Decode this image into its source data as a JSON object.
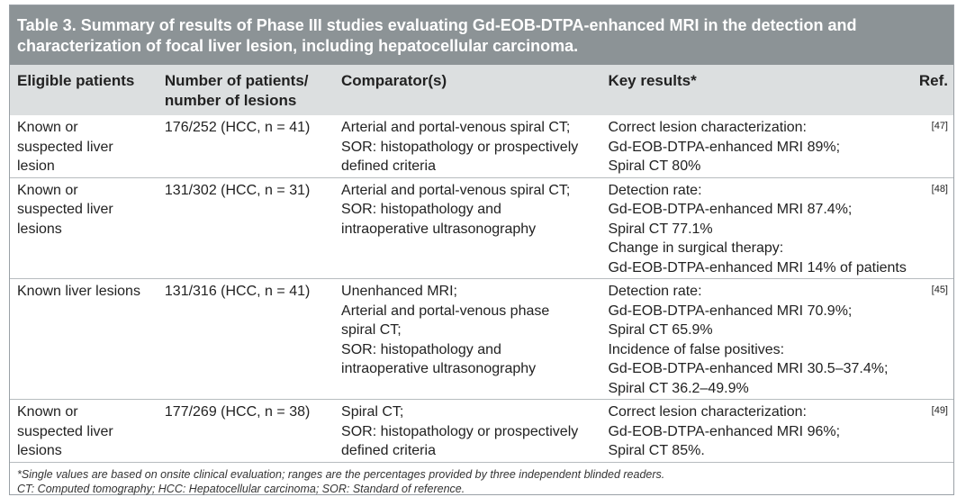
{
  "title": {
    "line1": "Table 3. Summary of results of Phase III studies evaluating Gd-EOB-DTPA-enhanced MRI in the detection and",
    "line2": "characterization of focal liver lesion, including hepatocellular carcinoma."
  },
  "headers": {
    "eligible": "Eligible patients",
    "number_line1": "Number of patients/",
    "number_line2": "number of lesions",
    "comparator": "Comparator(s)",
    "key_results": "Key results*",
    "ref": "Ref."
  },
  "rows": [
    {
      "eligible": [
        "Known or",
        "suspected liver",
        "lesion"
      ],
      "number": "176/252 (HCC, n = 41)",
      "comparator": [
        "Arterial and portal-venous spiral CT;",
        "SOR: histopathology or prospectively",
        "defined criteria"
      ],
      "results": [
        "Correct lesion characterization:",
        "Gd-EOB-DTPA-enhanced MRI 89%;",
        "Spiral CT 80%"
      ],
      "ref": "[47]"
    },
    {
      "eligible": [
        "Known or",
        "suspected liver",
        "lesions"
      ],
      "number": "131/302 (HCC, n = 31)",
      "comparator": [
        "Arterial and portal-venous spiral CT;",
        "SOR: histopathology and",
        "intraoperative ultrasonography"
      ],
      "results": [
        "Detection rate:",
        "Gd-EOB-DTPA-enhanced MRI 87.4%;",
        "Spiral CT 77.1%",
        "Change in surgical therapy:",
        "Gd-EOB-DTPA-enhanced MRI 14% of patients"
      ],
      "ref": "[48]"
    },
    {
      "eligible": [
        "Known liver lesions"
      ],
      "number": "131/316 (HCC, n = 41)",
      "comparator": [
        "Unenhanced MRI;",
        "Arterial and portal-venous phase",
        "spiral CT;",
        "SOR: histopathology and",
        "intraoperative ultrasonography"
      ],
      "results": [
        "Detection rate:",
        "Gd-EOB-DTPA-enhanced MRI 70.9%;",
        "Spiral CT 65.9%",
        "Incidence of false positives:",
        "Gd-EOB-DTPA-enhanced MRI 30.5–37.4%;",
        "Spiral CT 36.2–49.9%"
      ],
      "ref": "[45]"
    },
    {
      "eligible": [
        "Known or",
        "suspected liver",
        "lesions"
      ],
      "number": "177/269 (HCC, n = 38)",
      "comparator": [
        "Spiral CT;",
        "SOR: histopathology or prospectively",
        "defined criteria"
      ],
      "results": [
        "Correct lesion characterization:",
        "Gd-EOB-DTPA-enhanced MRI 96%;",
        "Spiral CT 85%."
      ],
      "ref": "[49]"
    }
  ],
  "footer": {
    "note1": "*Single values are based on onsite clinical evaluation; ranges are the percentages provided by three independent blinded readers.",
    "note2": "CT: Computed tomography; HCC: Hepatocellular carcinoma; SOR: Standard of reference."
  }
}
